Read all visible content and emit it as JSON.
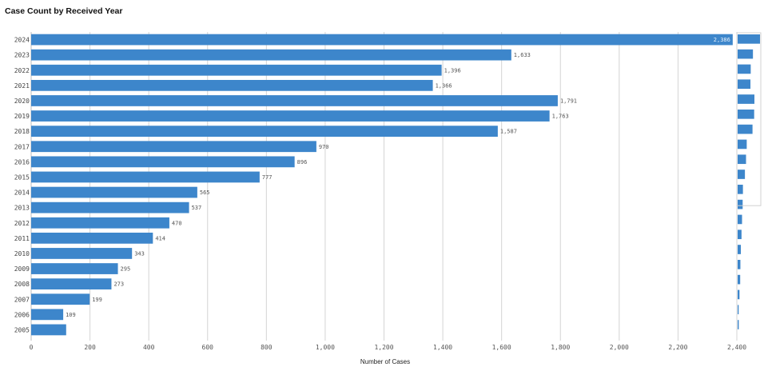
{
  "chart_data": {
    "type": "bar",
    "orientation": "horizontal",
    "title": "Case Count by Received Year",
    "xlabel": "Number of Cases",
    "ylabel": "",
    "xlim": [
      0,
      2400
    ],
    "x_ticks": [
      0,
      200,
      400,
      600,
      800,
      1000,
      1200,
      1400,
      1600,
      1800,
      2000,
      2200,
      2400
    ],
    "x_tick_labels": [
      "0",
      "200",
      "400",
      "600",
      "800",
      "1,000",
      "1,200",
      "1,400",
      "1,600",
      "1,800",
      "2,000",
      "2,200",
      "2,400"
    ],
    "grid": "vertical",
    "bar_color": "#3d86cb",
    "categories": [
      "2024",
      "2023",
      "2022",
      "2021",
      "2020",
      "2019",
      "2018",
      "2017",
      "2016",
      "2015",
      "2014",
      "2013",
      "2012",
      "2011",
      "2010",
      "2009",
      "2008",
      "2007",
      "2006",
      "2005"
    ],
    "values": [
      2386,
      1633,
      1396,
      1366,
      1791,
      1763,
      1587,
      970,
      896,
      777,
      565,
      537,
      470,
      414,
      343,
      295,
      273,
      199,
      109,
      119
    ],
    "value_labels": [
      "2,386",
      "1,633",
      "1,396",
      "1,366",
      "1,791",
      "1,763",
      "1,587",
      "970",
      "896",
      "777",
      "565",
      "537",
      "470",
      "414",
      "343",
      "295",
      "273",
      "199",
      "109",
      ""
    ],
    "overview_strip": true
  }
}
